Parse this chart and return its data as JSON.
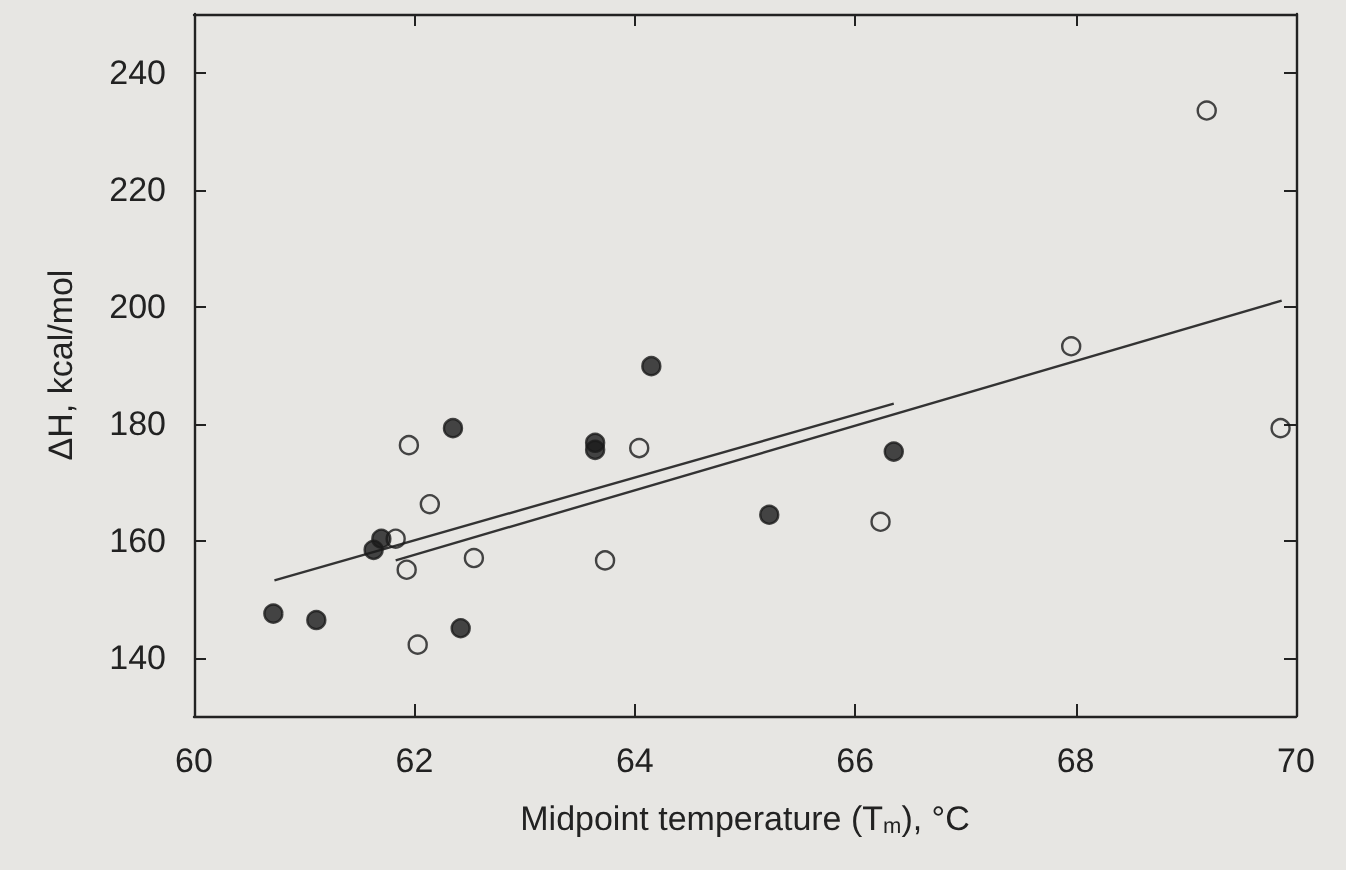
{
  "chart_data": {
    "type": "scatter",
    "xlabel": "Midpoint temperature (T$_{m}$), °C",
    "ylabel": "ΔH, kcal/mol",
    "xlim": [
      60,
      70
    ],
    "xticks": [
      60,
      62,
      64,
      66,
      68,
      70
    ],
    "ylim": [
      130,
      250
    ],
    "yticks": [
      140,
      160,
      180,
      200,
      220,
      240
    ],
    "grid": false,
    "marker": "circle",
    "series": [
      {
        "color": "#1a1a1a",
        "x": [
          60.72,
          61.11,
          61.63,
          61.7,
          62.35,
          62.42,
          63.64,
          63.64,
          64.15,
          65.22,
          66.35
        ],
        "values": [
          147.5,
          146.4,
          158.4,
          160.3,
          179.2,
          145,
          176.7,
          175.5,
          189.8,
          164.4,
          175.2
        ]
      },
      {
        "color": "#1a1a1a",
        "marker": "open circle",
        "x": [
          61.95,
          62.14,
          61.83,
          61.93,
          62.54,
          62.03,
          63.73,
          64.04,
          66.23,
          67.96,
          69.19,
          69.86
        ],
        "values": [
          176.3,
          166.2,
          160.3,
          155,
          157,
          142.2,
          156.6,
          175.8,
          163.2,
          193.2,
          233.5,
          179.2
        ]
      },
      {
        "type": "line",
        "color": "#333333",
        "marker": "none",
        "line_style": "solid",
        "x": [
          60.73,
          66.35
        ],
        "values": [
          153.2,
          183.4
        ]
      },
      {
        "type": "line",
        "color": "#333333",
        "marker": "none",
        "line_style": "solid",
        "x": [
          61.83,
          69.87
        ],
        "values": [
          156.6,
          201
        ]
      }
    ]
  }
}
